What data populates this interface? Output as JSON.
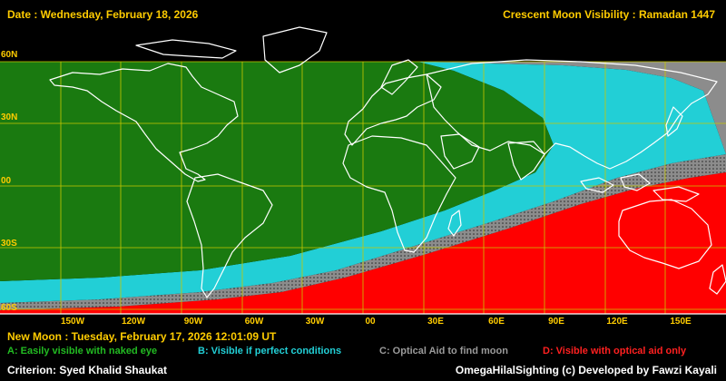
{
  "header": {
    "date": "Date : Wednesday, February 18, 2026",
    "title": "Crescent Moon Visibility : Ramadan  1447"
  },
  "map": {
    "lat_labels": [
      "60N",
      "30N",
      "00",
      "30S",
      "60S"
    ],
    "lon_labels": [
      "150W",
      "120W",
      "90W",
      "60W",
      "30W",
      "00",
      "30E",
      "60E",
      "90E",
      "120E",
      "150E"
    ],
    "colors": {
      "zone_a": "#1a7a10",
      "zone_b": "#22cfd6",
      "zone_c": "#8c8c8c",
      "zone_d": "#ff0000",
      "grid": "#c8c800",
      "coast": "#ffffff"
    }
  },
  "new_moon": "New Moon : Tuesday, February 17, 2026  12:01:09  UT",
  "legend": [
    {
      "text": "A: Easily visible with naked eye",
      "color": "#22bb22"
    },
    {
      "text": "B: Visible if perfect conditions",
      "color": "#22cfd6"
    },
    {
      "text": "C: Optical Aid to find moon",
      "color": "#9a9a9a"
    },
    {
      "text": "D: Visible with optical aid only",
      "color": "#ff2020"
    }
  ],
  "footer": {
    "criterion": "Criterion: Syed Khalid Shaukat",
    "credit": "OmegaHilalSighting  (c)  Developed by Fawzi Kayali"
  }
}
